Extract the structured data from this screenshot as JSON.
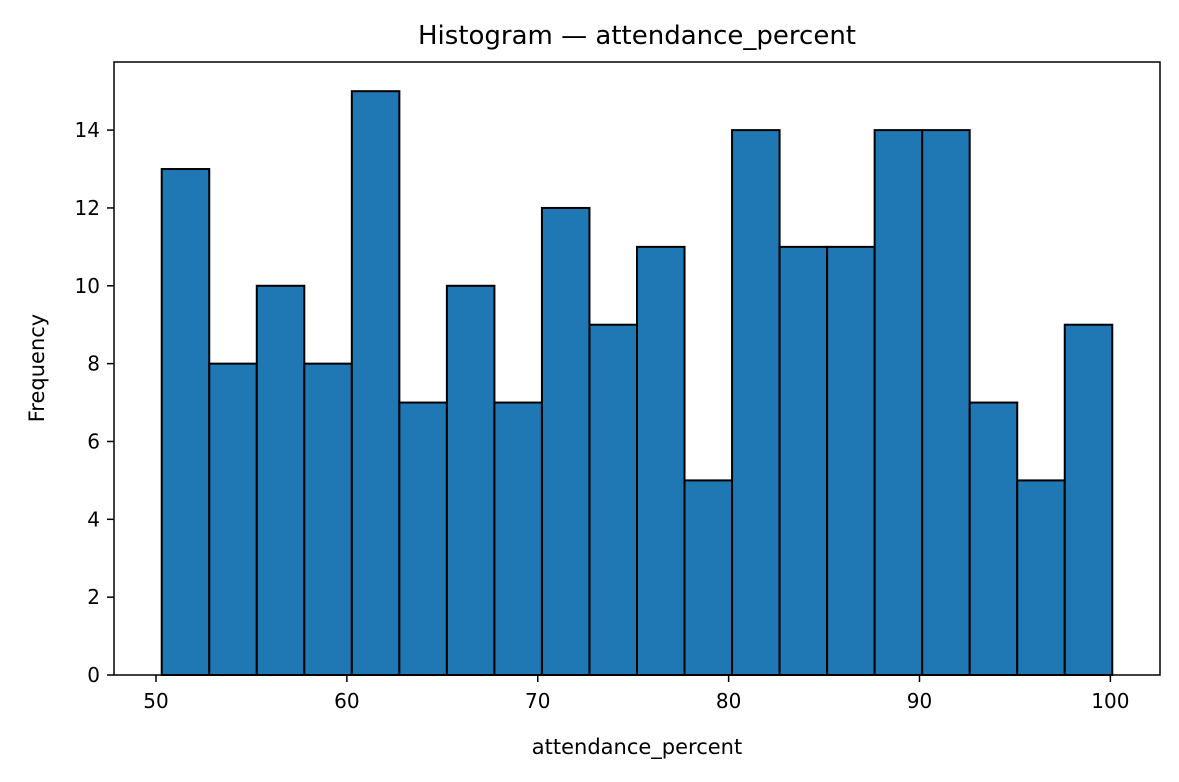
{
  "chart_data": {
    "type": "bar",
    "title": "Histogram — attendance_percent",
    "xlabel": "attendance_percent",
    "ylabel": "Frequency",
    "bin_edges": [
      50.3,
      52.79,
      55.28,
      57.77,
      60.26,
      62.75,
      65.24,
      67.73,
      70.22,
      72.71,
      75.2,
      77.69,
      80.18,
      82.67,
      85.16,
      87.65,
      90.14,
      92.63,
      95.12,
      97.61,
      100.1
    ],
    "values": [
      13,
      8,
      10,
      8,
      15,
      7,
      10,
      7,
      12,
      9,
      11,
      5,
      14,
      11,
      11,
      14,
      14,
      7,
      5,
      9
    ],
    "xlim": [
      47.8,
      102.6
    ],
    "ylim": [
      0,
      15.75
    ],
    "xticks": [
      50,
      60,
      70,
      80,
      90,
      100
    ],
    "yticks": [
      0,
      2,
      4,
      6,
      8,
      10,
      12,
      14
    ],
    "grid": false,
    "bar_color": "#1f77b4",
    "edge_color": "#000000"
  }
}
